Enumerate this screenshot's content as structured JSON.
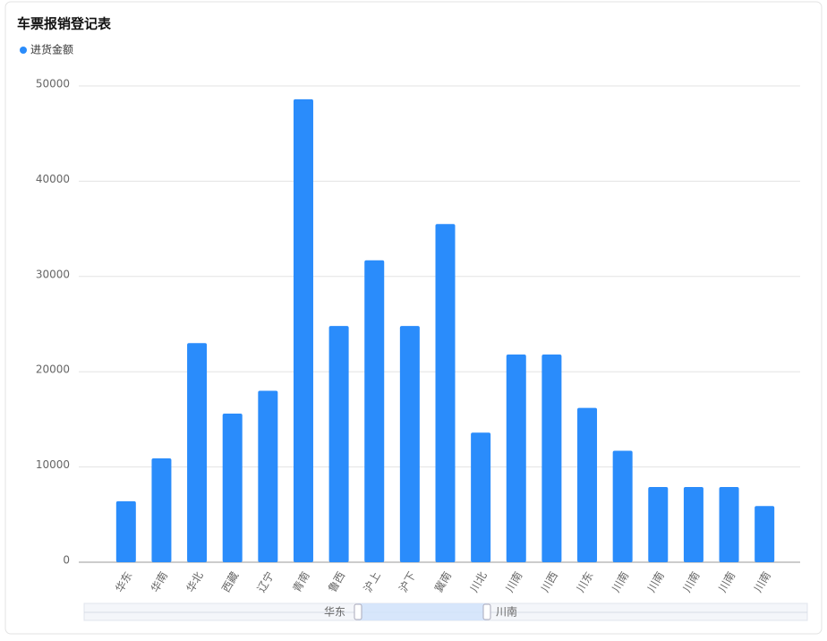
{
  "chart_data": {
    "type": "bar",
    "title": "车票报销登记表",
    "series": [
      {
        "name": "进货金额",
        "color": "#2a8cfb",
        "values": [
          6400,
          10900,
          23000,
          15600,
          18000,
          48600,
          24800,
          31700,
          24800,
          35500,
          13600,
          21800,
          21800,
          16200,
          11700,
          7900,
          7900,
          7900,
          5900
        ]
      }
    ],
    "categories": [
      "华东",
      "华南",
      "华北",
      "西藏",
      "辽宁",
      "青南",
      "鲁西",
      "沪上",
      "沪下",
      "冀南",
      "川北",
      "川南",
      "川西",
      "川东",
      "川南",
      "川南",
      "川南",
      "川南",
      "川南"
    ],
    "ylim": [
      0,
      50000
    ],
    "yticks": [
      0,
      10000,
      20000,
      30000,
      40000,
      50000
    ],
    "grid": true,
    "data_zoom": {
      "start_label": "华东",
      "end_label": "川南"
    }
  }
}
